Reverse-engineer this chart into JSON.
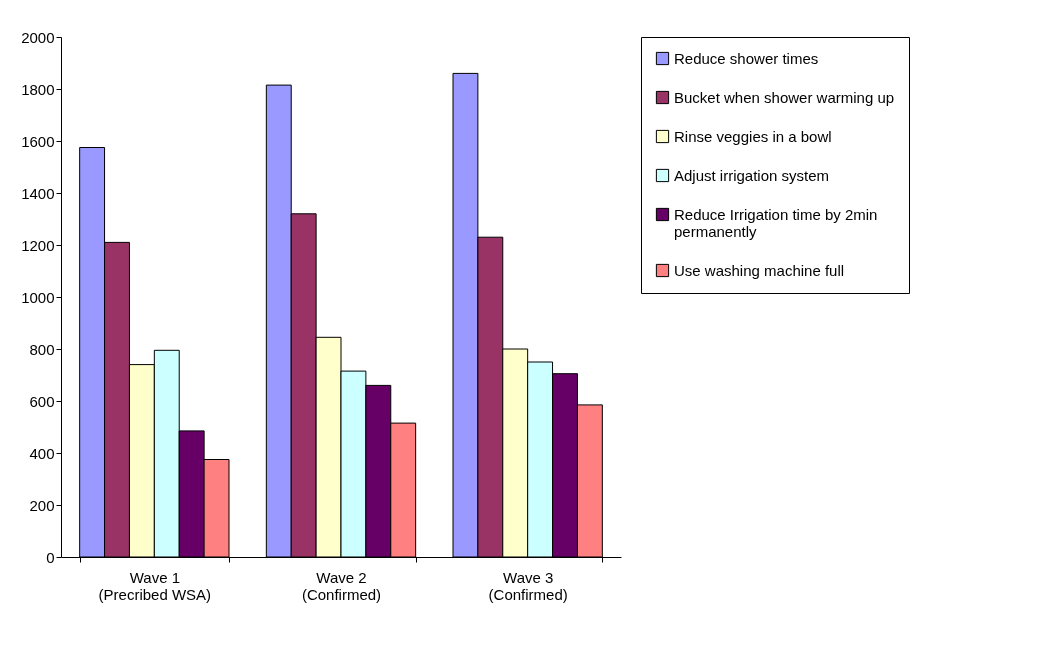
{
  "chart_data": {
    "type": "bar",
    "categories": [
      "Wave 1\n(Precribed WSA)",
      "Wave 2\n(Confirmed)",
      "Wave 3\n(Confirmed)"
    ],
    "series": [
      {
        "name": "Reduce shower times",
        "color": "#9999ff",
        "values": [
          1575,
          1815,
          1860
        ]
      },
      {
        "name": "Bucket when shower warming up",
        "color": "#993366",
        "values": [
          1210,
          1320,
          1230
        ]
      },
      {
        "name": "Rinse veggies in a bowl",
        "color": "#ffffcc",
        "values": [
          740,
          845,
          800
        ]
      },
      {
        "name": "Adjust irrigation system",
        "color": "#ccffff",
        "values": [
          795,
          715,
          750
        ]
      },
      {
        "name": "Reduce Irrigation time by 2min permanently",
        "color": "#660066",
        "values": [
          485,
          660,
          705
        ]
      },
      {
        "name": "Use washing machine full",
        "color": "#ff8080",
        "values": [
          375,
          515,
          585
        ]
      }
    ],
    "ylim": [
      0,
      2000
    ],
    "yticks": [
      0,
      200,
      400,
      600,
      800,
      1000,
      1200,
      1400,
      1600,
      1800,
      2000
    ],
    "grid": false,
    "legend": "right"
  }
}
